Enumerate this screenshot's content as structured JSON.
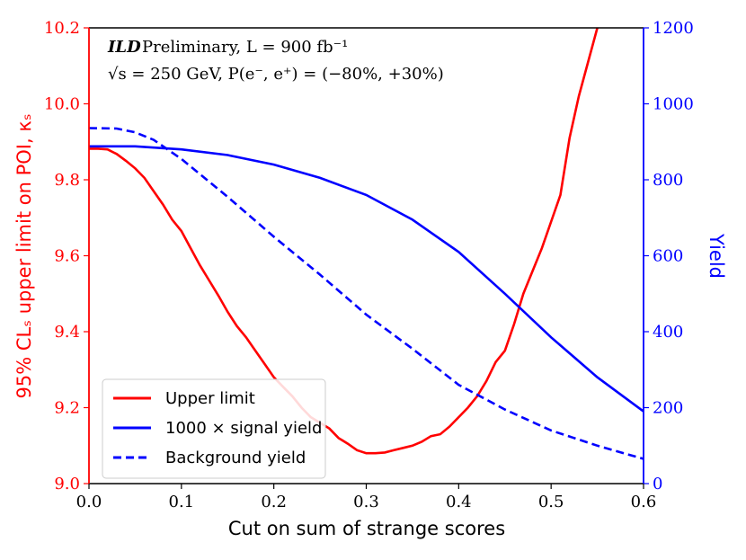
{
  "colors": {
    "left": "#ff0000",
    "right": "#0000ff",
    "upper_limit": "#ff0000",
    "signal": "#0000ff",
    "background": "#0000ff"
  },
  "annotation": {
    "brand": "ILD",
    "line1": "Preliminary, L = 900 fb⁻¹",
    "line2": "√s = 250 GeV, P(e⁻, e⁺) = (−80%, +30%)"
  },
  "chart_data": {
    "type": "line",
    "title": "",
    "xlabel": "Cut on sum of strange scores",
    "ylabel": "95% CLₛ upper limit on POI, κₛ",
    "y2label": "Yield",
    "xlim": [
      0.0,
      0.6
    ],
    "ylim": [
      9.0,
      10.2
    ],
    "y2lim": [
      0,
      1200
    ],
    "grid": false,
    "legend_position": "lower-left",
    "xticks": [
      "0.0",
      "0.1",
      "0.2",
      "0.3",
      "0.4",
      "0.5",
      "0.6"
    ],
    "yticks": [
      "9.0",
      "9.2",
      "9.4",
      "9.6",
      "9.8",
      "10.0",
      "10.2"
    ],
    "y2ticks": [
      "0",
      "200",
      "400",
      "600",
      "800",
      "1000",
      "1200"
    ],
    "series": [
      {
        "name": "Upper limit",
        "axis": "left",
        "style": "solid",
        "x": [
          0.0,
          0.01,
          0.02,
          0.03,
          0.04,
          0.05,
          0.06,
          0.07,
          0.08,
          0.09,
          0.1,
          0.11,
          0.12,
          0.13,
          0.14,
          0.15,
          0.16,
          0.17,
          0.18,
          0.19,
          0.2,
          0.21,
          0.22,
          0.23,
          0.24,
          0.25,
          0.26,
          0.27,
          0.28,
          0.29,
          0.3,
          0.31,
          0.32,
          0.33,
          0.34,
          0.35,
          0.36,
          0.37,
          0.38,
          0.39,
          0.4,
          0.41,
          0.42,
          0.43,
          0.44,
          0.45,
          0.46,
          0.47,
          0.48,
          0.49,
          0.5,
          0.51,
          0.52,
          0.53,
          0.54,
          0.55
        ],
        "values": [
          9.882,
          9.882,
          9.88,
          9.868,
          9.85,
          9.83,
          9.805,
          9.77,
          9.735,
          9.695,
          9.665,
          9.62,
          9.575,
          9.535,
          9.495,
          9.452,
          9.415,
          9.385,
          9.35,
          9.315,
          9.28,
          9.255,
          9.23,
          9.2,
          9.175,
          9.16,
          9.145,
          9.12,
          9.105,
          9.088,
          9.08,
          9.08,
          9.082,
          9.088,
          9.094,
          9.1,
          9.11,
          9.125,
          9.13,
          9.15,
          9.175,
          9.2,
          9.23,
          9.27,
          9.32,
          9.35,
          9.42,
          9.5,
          9.56,
          9.62,
          9.69,
          9.76,
          9.91,
          10.02,
          10.11,
          10.2
        ]
      },
      {
        "name": "1000 × signal yield",
        "axis": "right",
        "style": "solid",
        "x": [
          0.0,
          0.05,
          0.1,
          0.15,
          0.2,
          0.25,
          0.3,
          0.35,
          0.4,
          0.45,
          0.5,
          0.55,
          0.6
        ],
        "values": [
          888,
          888,
          880,
          865,
          840,
          805,
          760,
          695,
          610,
          500,
          385,
          280,
          190
        ]
      },
      {
        "name": "Background yield",
        "axis": "right",
        "style": "dashed",
        "x": [
          0.0,
          0.03,
          0.05,
          0.07,
          0.1,
          0.15,
          0.2,
          0.25,
          0.3,
          0.35,
          0.4,
          0.45,
          0.5,
          0.55,
          0.6
        ],
        "values": [
          936,
          935,
          925,
          905,
          855,
          755,
          650,
          550,
          445,
          355,
          260,
          195,
          140,
          100,
          65
        ]
      }
    ]
  }
}
